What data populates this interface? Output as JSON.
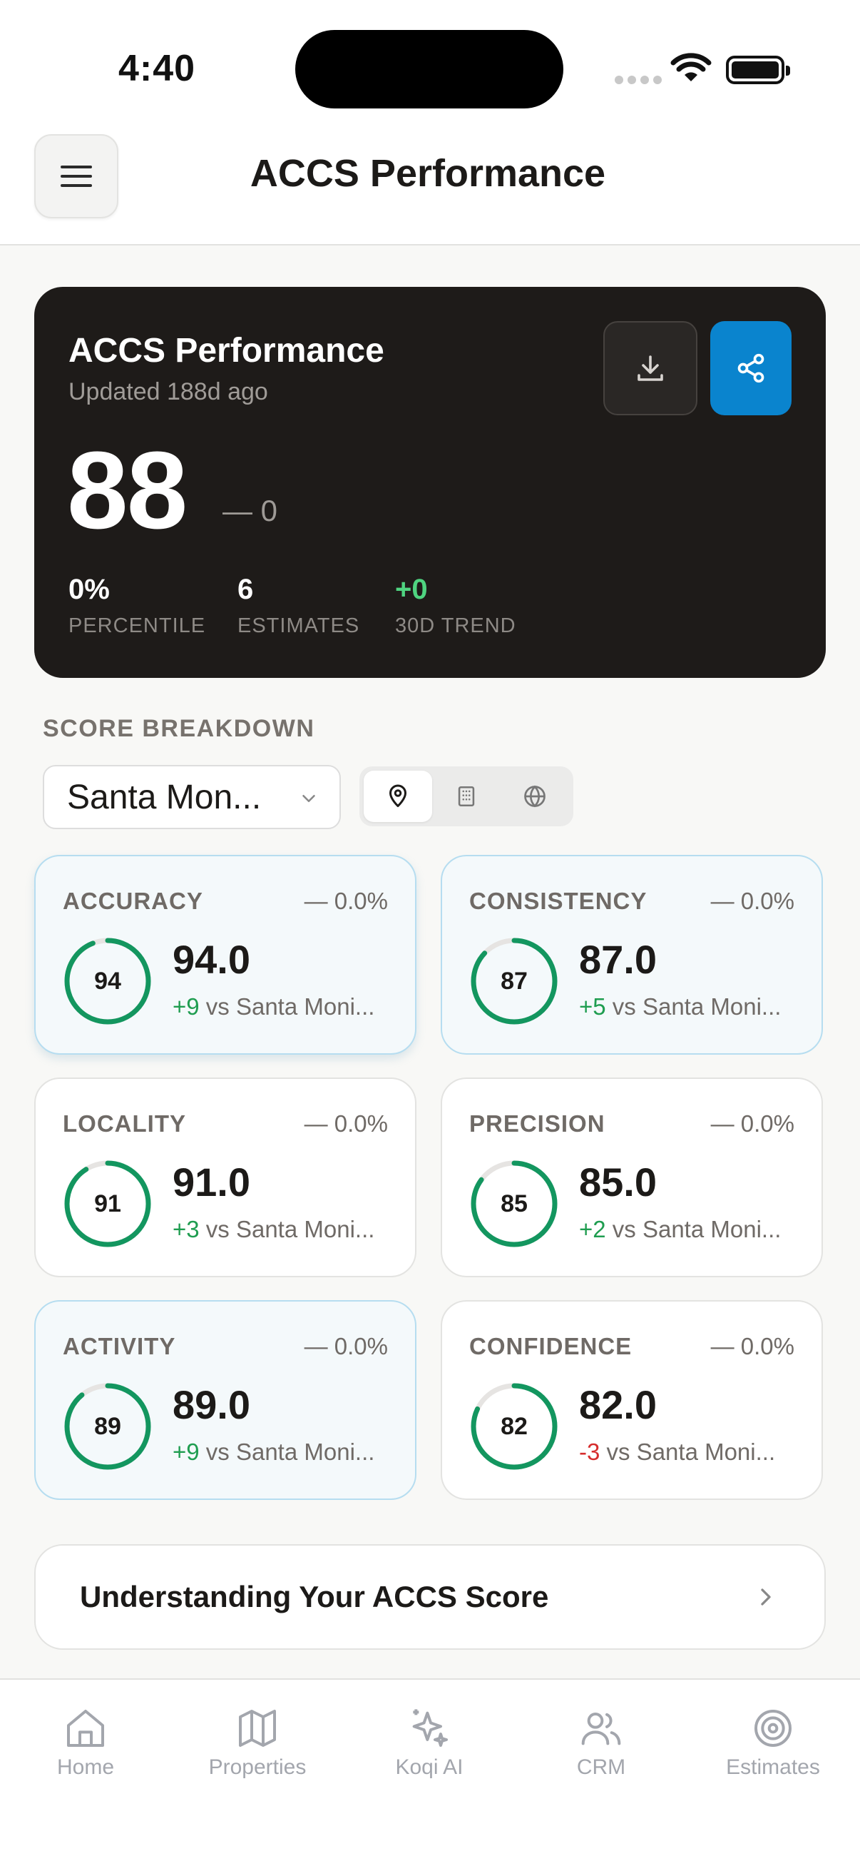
{
  "status": {
    "time": "4:40"
  },
  "header": {
    "title": "ACCS Performance",
    "menu_icon": "hamburger-icon"
  },
  "hero": {
    "title": "ACCS Performance",
    "updated": "Updated 188d ago",
    "score": "88",
    "delta": "— 0",
    "stats": [
      {
        "value": "0%",
        "label": "PERCENTILE"
      },
      {
        "value": "6",
        "label": "ESTIMATES"
      },
      {
        "value": "+0",
        "label": "30D TREND"
      }
    ],
    "accent": "#0a84ce"
  },
  "breakdown": {
    "label": "SCORE BREAKDOWN",
    "selected_area": "Santa Mon...",
    "scope_icons": [
      "pin-icon",
      "building-icon",
      "globe-icon"
    ]
  },
  "metrics": [
    {
      "label": "ACCURACY",
      "change": "— 0.0%",
      "ring": "94",
      "value": "94.0",
      "diff": "+9",
      "compare": " vs Santa Moni...",
      "fraction": 0.94
    },
    {
      "label": "CONSISTENCY",
      "change": "— 0.0%",
      "ring": "87",
      "value": "87.0",
      "diff": "+5",
      "compare": " vs Santa Moni...",
      "fraction": 0.87
    },
    {
      "label": "LOCALITY",
      "change": "— 0.0%",
      "ring": "91",
      "value": "91.0",
      "diff": "+3",
      "compare": " vs Santa Moni...",
      "fraction": 0.91
    },
    {
      "label": "PRECISION",
      "change": "— 0.0%",
      "ring": "85",
      "value": "85.0",
      "diff": "+2",
      "compare": " vs Santa Moni...",
      "fraction": 0.85
    },
    {
      "label": "ACTIVITY",
      "change": "— 0.0%",
      "ring": "89",
      "value": "89.0",
      "diff": "+9",
      "compare": " vs Santa Moni...",
      "fraction": 0.89
    },
    {
      "label": "CONFIDENCE",
      "change": "— 0.0%",
      "ring": "82",
      "value": "82.0",
      "diff": "-3",
      "compare": " vs Santa Moni...",
      "fraction": 0.82
    }
  ],
  "understand": {
    "label": "Understanding Your ACCS Score"
  },
  "tabs": [
    {
      "label": "Home",
      "icon": "home-icon"
    },
    {
      "label": "Properties",
      "icon": "map-icon"
    },
    {
      "label": "Koqi AI",
      "icon": "sparkles-icon"
    },
    {
      "label": "CRM",
      "icon": "users-icon"
    },
    {
      "label": "Estimates",
      "icon": "target-icon"
    }
  ]
}
